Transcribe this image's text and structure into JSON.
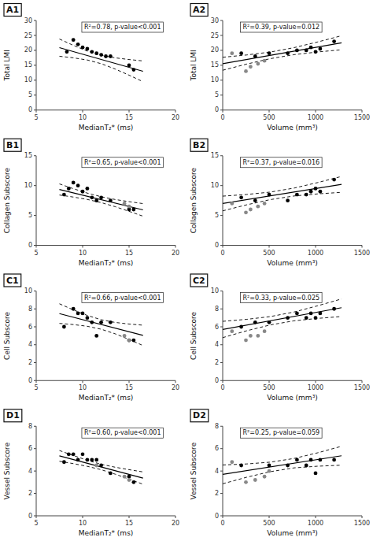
{
  "chart_data": [
    {
      "type": "scatter",
      "title": "A1",
      "x_label": "MedianT₂* (ms)",
      "y_label": "Total LMI",
      "annotation": "R²=0.78, p-value<0.001",
      "xlim": [
        5,
        20
      ],
      "ylim": [
        0,
        30
      ],
      "xticks": [
        5,
        10,
        15,
        20
      ],
      "yticks": [
        0,
        5,
        10,
        15,
        20,
        25,
        30
      ],
      "grid": false,
      "series": [
        {
          "type": "scatter",
          "marker": "circle",
          "color": "#000000",
          "x": [
            8.3,
            9.0,
            9.5,
            10.0,
            10.5,
            11.0,
            11.5,
            12.0,
            12.5,
            13.0,
            15.0,
            15.5
          ],
          "values": [
            19.5,
            23.5,
            22.0,
            21.0,
            20.5,
            19.5,
            19.0,
            18.5,
            18.0,
            18.0,
            15.0,
            13.5
          ]
        },
        {
          "type": "line",
          "line_style": "solid",
          "color": "#000000",
          "x": [
            7.5,
            16.5
          ],
          "values": [
            20.9,
            12.98
          ]
        },
        {
          "type": "line",
          "line_style": "dashed",
          "color": "#000000",
          "x": [
            7.5,
            9,
            10.5,
            12,
            13.5,
            15,
            16.5
          ],
          "values": [
            23.78,
            21.67,
            19.76,
            18.35,
            17.49,
            16.92,
            16.45
          ]
        },
        {
          "type": "line",
          "line_style": "dashed",
          "color": "#000000",
          "x": [
            7.5,
            9,
            10.5,
            12,
            13.5,
            15,
            16.5
          ],
          "values": [
            18.02,
            17.49,
            16.76,
            15.53,
            13.75,
            11.68,
            9.51
          ]
        }
      ]
    },
    {
      "type": "scatter",
      "title": "A2",
      "x_label": "Volume (mm³)",
      "y_label": "Total LMI",
      "annotation": "R²=0.39, p-value=0.012",
      "xlim": [
        0,
        1500
      ],
      "ylim": [
        0,
        30
      ],
      "xticks": [
        0,
        500,
        1000,
        1500
      ],
      "yticks": [
        0,
        5,
        10,
        15,
        20,
        25,
        30
      ],
      "grid": false,
      "series": [
        {
          "type": "scatter",
          "marker": "circle",
          "color": "#000000",
          "x": [
            200,
            350,
            500,
            700,
            800,
            900,
            950,
            1000,
            1050,
            1200
          ],
          "values": [
            19.0,
            18.0,
            19.0,
            19.0,
            20.0,
            20.0,
            21.0,
            19.5,
            20.5,
            23.0
          ]
        },
        {
          "type": "scatter",
          "marker": "circle",
          "color": "#888888",
          "x": [
            100,
            250,
            300,
            380,
            450
          ],
          "values": [
            19.0,
            13.0,
            14.5,
            15.5,
            16.5
          ]
        },
        {
          "type": "line",
          "line_style": "solid",
          "color": "#000000",
          "x": [
            0,
            1280
          ],
          "values": [
            15.5,
            22.54
          ]
        },
        {
          "type": "line",
          "line_style": "dashed",
          "color": "#000000",
          "x": [
            0,
            256,
            512,
            768,
            1024,
            1280
          ],
          "values": [
            17.68,
            18.44,
            19.42,
            20.9,
            22.81,
            24.89
          ]
        },
        {
          "type": "line",
          "line_style": "dashed",
          "color": "#000000",
          "x": [
            0,
            256,
            512,
            768,
            1024,
            1280
          ],
          "values": [
            13.33,
            15.38,
            17.21,
            18.55,
            19.46,
            20.19
          ]
        }
      ]
    },
    {
      "type": "scatter",
      "title": "B1",
      "x_label": "MedianT₂* (ms)",
      "y_label": "Collagen Subscore",
      "annotation": "R²=0.65, p-value<0.001",
      "xlim": [
        5,
        20
      ],
      "ylim": [
        0,
        15
      ],
      "xticks": [
        5,
        10,
        15,
        20
      ],
      "yticks": [
        0,
        5,
        10,
        15
      ],
      "grid": false,
      "series": [
        {
          "type": "scatter",
          "marker": "circle",
          "color": "#000000",
          "x": [
            8.0,
            8.5,
            9.0,
            9.5,
            10.0,
            10.5,
            11.0,
            11.5,
            12.0,
            13.0,
            15.0,
            15.5
          ],
          "values": [
            8.5,
            9.5,
            10.5,
            10.0,
            9.0,
            9.5,
            8.0,
            7.5,
            8.0,
            7.5,
            6.0,
            6.0
          ]
        },
        {
          "type": "scatter",
          "marker": "circle",
          "color": "#888888",
          "x": [
            14.5,
            15.0
          ],
          "values": [
            7.0,
            6.5
          ]
        },
        {
          "type": "line",
          "line_style": "solid",
          "color": "#000000",
          "x": [
            7.5,
            16.5
          ],
          "values": [
            9.35,
            5.93
          ]
        },
        {
          "type": "line",
          "line_style": "dashed",
          "color": "#000000",
          "x": [
            7.5,
            9,
            10.5,
            12,
            13.5,
            15,
            16.5
          ],
          "values": [
            10.28,
            9.48,
            8.74,
            8.13,
            7.67,
            7.31,
            6.98
          ]
        },
        {
          "type": "line",
          "line_style": "dashed",
          "color": "#000000",
          "x": [
            7.5,
            9,
            10.5,
            12,
            13.5,
            15,
            16.5
          ],
          "values": [
            8.42,
            8.08,
            7.68,
            7.15,
            6.47,
            5.69,
            4.88
          ]
        }
      ]
    },
    {
      "type": "scatter",
      "title": "B2",
      "x_label": "Volume (mm³)",
      "y_label": "Collagen Subscore",
      "annotation": "R²=0.37, p-value=0.016",
      "xlim": [
        0,
        1500
      ],
      "ylim": [
        0,
        15
      ],
      "xticks": [
        0,
        500,
        1000,
        1500
      ],
      "yticks": [
        0,
        5,
        10,
        15
      ],
      "grid": false,
      "series": [
        {
          "type": "scatter",
          "marker": "circle",
          "color": "#000000",
          "x": [
            200,
            350,
            500,
            700,
            800,
            900,
            950,
            1000,
            1050,
            1200
          ],
          "values": [
            8.0,
            7.5,
            8.5,
            7.5,
            8.5,
            8.5,
            9.0,
            9.5,
            9.0,
            11.0
          ]
        },
        {
          "type": "scatter",
          "marker": "circle",
          "color": "#888888",
          "x": [
            100,
            250,
            300,
            380,
            450
          ],
          "values": [
            7.0,
            5.5,
            6.0,
            6.5,
            7.0
          ]
        },
        {
          "type": "line",
          "line_style": "solid",
          "color": "#000000",
          "x": [
            0,
            1280
          ],
          "values": [
            7.0,
            10.2
          ]
        },
        {
          "type": "line",
          "line_style": "dashed",
          "color": "#000000",
          "x": [
            0,
            256,
            512,
            768,
            1024,
            1280
          ],
          "values": [
            8.23,
            8.51,
            8.91,
            9.58,
            10.51,
            11.53
          ]
        },
        {
          "type": "line",
          "line_style": "dashed",
          "color": "#000000",
          "x": [
            0,
            256,
            512,
            768,
            1024,
            1280
          ],
          "values": [
            5.77,
            6.77,
            7.65,
            8.26,
            8.61,
            8.87
          ]
        }
      ]
    },
    {
      "type": "scatter",
      "title": "C1",
      "x_label": "MedianT₂* (ms)",
      "y_label": "Cell Subscore",
      "annotation": "R²=0.66, p-value<0.001",
      "xlim": [
        5,
        20
      ],
      "ylim": [
        0,
        10
      ],
      "xticks": [
        5,
        10,
        15,
        20
      ],
      "yticks": [
        0,
        2,
        4,
        6,
        8,
        10
      ],
      "grid": false,
      "series": [
        {
          "type": "scatter",
          "marker": "circle",
          "color": "#000000",
          "x": [
            8.0,
            9.0,
            9.5,
            10.0,
            10.5,
            11.0,
            11.5,
            12.0,
            13.0,
            15.0,
            15.5
          ],
          "values": [
            6.0,
            8.0,
            7.5,
            7.5,
            7.0,
            6.5,
            5.0,
            6.5,
            6.5,
            4.5,
            4.5
          ]
        },
        {
          "type": "scatter",
          "marker": "circle",
          "color": "#888888",
          "x": [
            14.5,
            15.0
          ],
          "values": [
            5.0,
            4.5
          ]
        },
        {
          "type": "line",
          "line_style": "solid",
          "color": "#000000",
          "x": [
            7.5,
            16.5
          ],
          "values": [
            7.475,
            5.045
          ]
        },
        {
          "type": "line",
          "line_style": "dashed",
          "color": "#000000",
          "x": [
            7.5,
            9,
            10.5,
            12,
            13.5,
            15,
            16.5
          ],
          "values": [
            8.57,
            7.89,
            7.27,
            6.79,
            6.49,
            6.31,
            6.18
          ]
        },
        {
          "type": "line",
          "line_style": "dashed",
          "color": "#000000",
          "x": [
            7.5,
            9,
            10.5,
            12,
            13.5,
            15,
            16.5
          ],
          "values": [
            6.38,
            6.25,
            6.06,
            5.73,
            5.22,
            4.59,
            3.91
          ]
        }
      ]
    },
    {
      "type": "scatter",
      "title": "C2",
      "x_label": "Volume (mm³)",
      "y_label": "Cell Subscore",
      "annotation": "R²=0.33, p-value=0.025",
      "xlim": [
        0,
        1500
      ],
      "ylim": [
        0,
        10
      ],
      "xticks": [
        0,
        500,
        1000,
        1500
      ],
      "yticks": [
        0,
        2,
        4,
        6,
        8,
        10
      ],
      "grid": false,
      "series": [
        {
          "type": "scatter",
          "marker": "circle",
          "color": "#000000",
          "x": [
            200,
            350,
            500,
            700,
            800,
            900,
            950,
            1000,
            1050,
            1200
          ],
          "values": [
            6.0,
            6.5,
            6.5,
            7.0,
            7.5,
            7.0,
            7.5,
            7.0,
            7.5,
            8.0
          ]
        },
        {
          "type": "scatter",
          "marker": "circle",
          "color": "#888888",
          "x": [
            100,
            250,
            300,
            380,
            450
          ],
          "values": [
            5.5,
            4.5,
            5.0,
            5.0,
            5.5
          ]
        },
        {
          "type": "line",
          "line_style": "solid",
          "color": "#000000",
          "x": [
            0,
            1280
          ],
          "values": [
            5.7,
            8.132
          ]
        },
        {
          "type": "line",
          "line_style": "dashed",
          "color": "#000000",
          "x": [
            0,
            256,
            512,
            768,
            1024,
            1280
          ],
          "values": [
            6.61,
            6.83,
            7.14,
            7.65,
            8.35,
            9.11
          ]
        },
        {
          "type": "line",
          "line_style": "dashed",
          "color": "#000000",
          "x": [
            0,
            256,
            512,
            768,
            1024,
            1280
          ],
          "values": [
            4.79,
            5.55,
            6.21,
            6.67,
            6.94,
            7.15
          ]
        }
      ]
    },
    {
      "type": "scatter",
      "title": "D1",
      "x_label": "MedianT₂* (ms)",
      "y_label": "Vessel Subscore",
      "annotation": "R²=0.60, p-value<0.001",
      "xlim": [
        5,
        20
      ],
      "ylim": [
        0,
        8
      ],
      "xticks": [
        5,
        10,
        15,
        20
      ],
      "yticks": [
        0,
        2,
        4,
        6,
        8
      ],
      "grid": false,
      "series": [
        {
          "type": "scatter",
          "marker": "circle",
          "color": "#000000",
          "x": [
            8.0,
            8.5,
            9.0,
            9.5,
            10.0,
            10.5,
            11.0,
            11.5,
            12.0,
            13.0,
            15.0,
            15.5
          ],
          "values": [
            4.8,
            5.5,
            5.5,
            5.0,
            5.5,
            5.0,
            5.0,
            5.0,
            4.5,
            3.8,
            3.5,
            3.0
          ]
        },
        {
          "type": "scatter",
          "marker": "circle",
          "color": "#888888",
          "x": [
            11.5,
            14.5,
            15.0
          ],
          "values": [
            4.5,
            3.5,
            3.2
          ]
        },
        {
          "type": "line",
          "line_style": "solid",
          "color": "#000000",
          "x": [
            7.5,
            16.5
          ],
          "values": [
            5.35,
            3.37
          ]
        },
        {
          "type": "line",
          "line_style": "dashed",
          "color": "#000000",
          "x": [
            7.5,
            9,
            10.5,
            12,
            13.5,
            15,
            16.5
          ],
          "values": [
            5.83,
            5.38,
            4.96,
            4.6,
            4.34,
            4.12,
            3.92
          ]
        },
        {
          "type": "line",
          "line_style": "dashed",
          "color": "#000000",
          "x": [
            7.5,
            9,
            10.5,
            12,
            13.5,
            15,
            16.5
          ],
          "values": [
            4.87,
            4.66,
            4.42,
            4.12,
            3.72,
            3.28,
            2.82
          ]
        }
      ]
    },
    {
      "type": "scatter",
      "title": "D2",
      "x_label": "Volume (mm³)",
      "y_label": "Vessel Subscore",
      "annotation": "R²=0.25, p-value=0.059",
      "xlim": [
        0,
        1500
      ],
      "ylim": [
        0,
        8
      ],
      "xticks": [
        0,
        500,
        1000,
        1500
      ],
      "yticks": [
        0,
        2,
        4,
        6,
        8
      ],
      "grid": false,
      "series": [
        {
          "type": "scatter",
          "marker": "circle",
          "color": "#000000",
          "x": [
            200,
            500,
            700,
            800,
            900,
            950,
            1000,
            1050,
            1200
          ],
          "values": [
            4.5,
            4.5,
            4.5,
            5.0,
            4.5,
            5.0,
            3.8,
            5.0,
            5.0
          ]
        },
        {
          "type": "scatter",
          "marker": "circle",
          "color": "#888888",
          "x": [
            100,
            250,
            350,
            450,
            500
          ],
          "values": [
            4.8,
            3.0,
            3.2,
            3.5,
            4.0
          ]
        },
        {
          "type": "line",
          "line_style": "solid",
          "color": "#000000",
          "x": [
            0,
            1280
          ],
          "values": [
            3.7,
            5.364
          ]
        },
        {
          "type": "line",
          "line_style": "dashed",
          "color": "#000000",
          "x": [
            0,
            256,
            512,
            768,
            1024,
            1280
          ],
          "values": [
            4.54,
            4.63,
            4.79,
            5.12,
            5.63,
            6.21
          ]
        },
        {
          "type": "line",
          "line_style": "dashed",
          "color": "#000000",
          "x": [
            0,
            256,
            512,
            768,
            1024,
            1280
          ],
          "values": [
            2.86,
            3.44,
            3.94,
            4.28,
            4.43,
            4.52
          ]
        }
      ]
    }
  ]
}
